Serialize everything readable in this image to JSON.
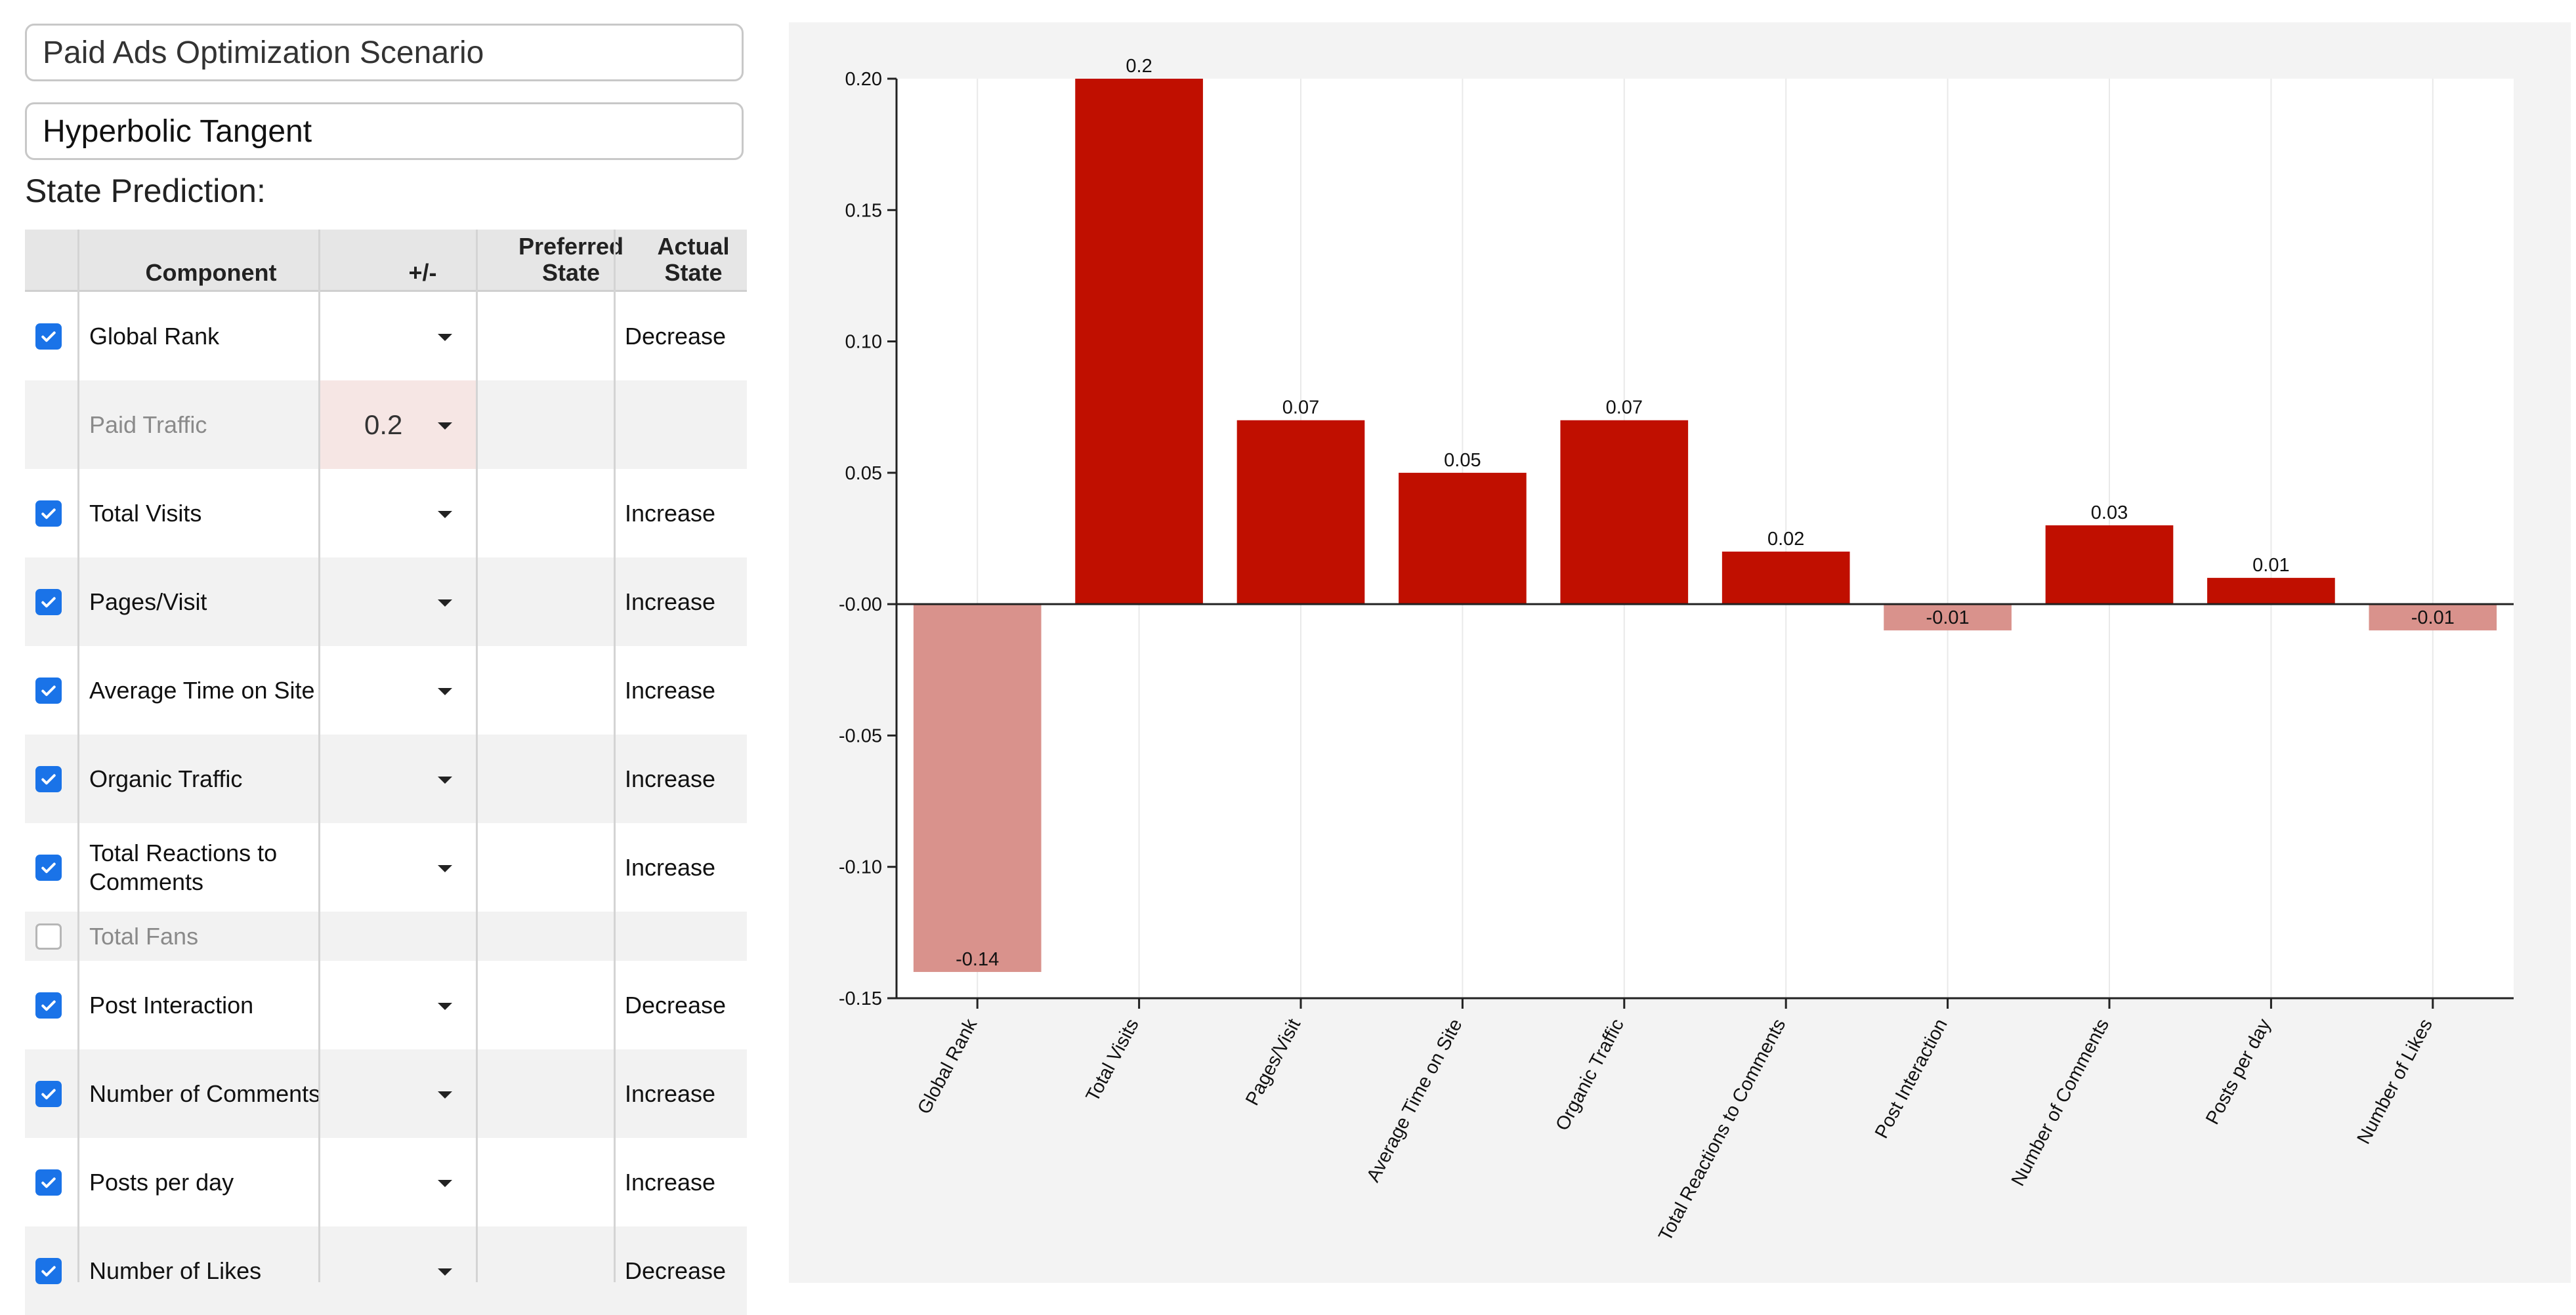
{
  "scenario": {
    "title": "Paid Ads Optimization Scenario"
  },
  "activation": {
    "value": "Hyperbolic Tangent"
  },
  "state_prediction_label": "State Prediction:",
  "table": {
    "headers": {
      "component": "Component",
      "plusminus": "+/-",
      "preferred": "Preferred State",
      "actual": "Actual State"
    },
    "rows": [
      {
        "checked": true,
        "enabled": true,
        "component": "Global Rank",
        "value": "",
        "actual": "Decrease"
      },
      {
        "checked": null,
        "enabled": false,
        "component": "Paid Traffic",
        "value": "0.2",
        "actual": ""
      },
      {
        "checked": true,
        "enabled": true,
        "component": "Total Visits",
        "value": "",
        "actual": "Increase"
      },
      {
        "checked": true,
        "enabled": true,
        "component": "Pages/Visit",
        "value": "",
        "actual": "Increase"
      },
      {
        "checked": true,
        "enabled": true,
        "component": "Average Time on Site",
        "value": "",
        "actual": "Increase"
      },
      {
        "checked": true,
        "enabled": true,
        "component": "Organic Traffic",
        "value": "",
        "actual": "Increase"
      },
      {
        "checked": true,
        "enabled": true,
        "component": "Total Reactions to Comments",
        "value": "",
        "actual": "Increase"
      },
      {
        "checked": false,
        "enabled": false,
        "component": "Total Fans",
        "value": "",
        "actual": ""
      },
      {
        "checked": true,
        "enabled": true,
        "component": "Post Interaction",
        "value": "",
        "actual": "Decrease"
      },
      {
        "checked": true,
        "enabled": true,
        "component": "Number of Comments",
        "value": "",
        "actual": "Increase"
      },
      {
        "checked": true,
        "enabled": true,
        "component": "Posts per day",
        "value": "",
        "actual": "Increase"
      },
      {
        "checked": true,
        "enabled": true,
        "component": "Number of Likes",
        "value": "",
        "actual": "Decrease"
      }
    ]
  },
  "chart_data": {
    "type": "bar",
    "title": "",
    "xlabel": "",
    "ylabel": "",
    "categories": [
      "Global Rank",
      "Total Visits",
      "Pages/Visit",
      "Average Time on Site",
      "Organic Traffic",
      "Total Reactions to Comments",
      "Post Interaction",
      "Number of Comments",
      "Posts per day",
      "Number of Likes"
    ],
    "values": [
      -0.14,
      0.2,
      0.07,
      0.05,
      0.07,
      0.02,
      -0.01,
      0.03,
      0.01,
      -0.01
    ],
    "value_labels": [
      "-0.14",
      "0.2",
      "0.07",
      "0.05",
      "0.07",
      "0.02",
      "-0.01",
      "0.03",
      "0.01",
      "-0.01"
    ],
    "ylim": [
      -0.15,
      0.2
    ],
    "yticks": [
      0.2,
      0.15,
      0.1,
      0.05,
      0.0,
      -0.05,
      -0.1,
      -0.15
    ],
    "ytick_labels": [
      "0.20",
      "0.15",
      "0.10",
      "0.05",
      "-0.00",
      "-0.05",
      "-0.10",
      "-0.15"
    ],
    "grid": "vertical",
    "colors": {
      "positive": "#c00f00",
      "negative": "#d9928c"
    }
  }
}
